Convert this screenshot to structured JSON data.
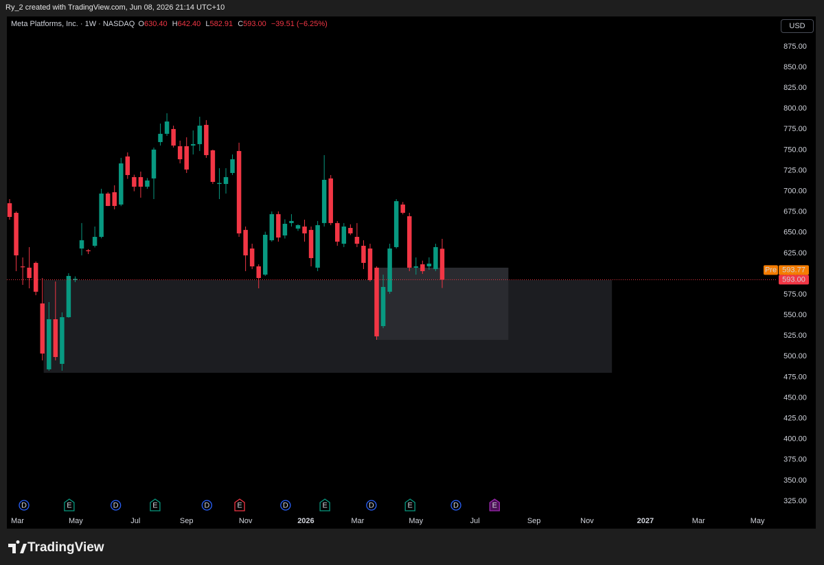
{
  "top_note": "Ry_2 created with TradingView.com, Jun 08, 2026 21:14 UTC+10",
  "header": {
    "symbol": "Meta Platforms, Inc. · 1W · NASDAQ",
    "ohlc": [
      {
        "label": "O",
        "value": "630.40"
      },
      {
        "label": "H",
        "value": "642.40"
      },
      {
        "label": "L",
        "value": "582.91"
      },
      {
        "label": "C",
        "value": "593.00"
      }
    ],
    "change": "−39.51 (−6.25%)"
  },
  "currency": "USD",
  "brand": "TradingView",
  "chart_data": {
    "type": "candlestick",
    "up_color": "#089981",
    "down_color": "#f23645",
    "open": [
      685.5,
      673.9,
      609,
      607.5,
      613.3,
      564.2,
      484.5,
      545.1,
      491.1,
      547.6,
      592.5,
      630.7,
      628.5,
      634,
      644.8,
      697.2,
      698.8,
      683.9,
      742.1,
      717.1,
      717.1,
      705.5,
      715.5,
      759.5,
      769.5,
      775.3,
      754.5,
      754.5,
      755.3,
      757,
      780.3,
      749.5,
      708.8,
      708.8,
      722.1,
      748.7,
      653.2,
      630.7,
      609.1,
      599.1,
      640.7,
      672.3,
      646.5,
      661.5,
      654.8,
      657.3,
      653.2,
      607.5,
      661.5,
      715.5,
      661.5,
      636.5,
      655.6,
      644.8,
      634,
      630.7,
      607.5,
      536.8,
      578.4,
      632.4,
      683.9,
      669.8,
      607.5,
      611.6,
      609.1,
      605.8,
      630.4
    ],
    "high": [
      690.5,
      675.6,
      619.9,
      632.4,
      615,
      595,
      565.9,
      590.8,
      553.4,
      600.8,
      597,
      661.5,
      630,
      657.3,
      703,
      699,
      707.2,
      740.4,
      747,
      720,
      723.8,
      716,
      752.9,
      781.9,
      794.4,
      779.4,
      761.2,
      765.3,
      773.6,
      790.2,
      786.1,
      750.4,
      727.9,
      727.9,
      744.5,
      758.7,
      657.3,
      636.5,
      611.6,
      651,
      675.6,
      675.6,
      666,
      672.3,
      660,
      665.6,
      657.3,
      664,
      743.7,
      719.6,
      664,
      661.5,
      660,
      661.5,
      640.7,
      636.5,
      609.1,
      599.1,
      636.5,
      690.5,
      687,
      673.9,
      619.9,
      616,
      620,
      636.5,
      642.4
    ],
    "low": [
      665.6,
      603.3,
      586.7,
      582.5,
      574.2,
      495.3,
      482.8,
      495.3,
      482.8,
      547,
      590,
      622.4,
      624,
      632,
      643,
      682,
      678.1,
      682,
      715,
      700,
      692.2,
      703,
      690.5,
      755.3,
      767,
      752.9,
      733.7,
      722.1,
      744.5,
      748.7,
      740.4,
      708.8,
      690.5,
      697.2,
      719.6,
      644.8,
      603.3,
      605.8,
      582.5,
      597.5,
      639,
      639,
      642.8,
      657.3,
      652,
      639,
      609.1,
      603.3,
      657.3,
      659,
      634,
      632.4,
      647,
      632.4,
      605.8,
      590.8,
      520.2,
      534.3,
      575.9,
      630.7,
      672,
      603.3,
      599.1,
      600,
      605,
      603.3,
      582.91
    ],
    "close": [
      668.9,
      622.4,
      608,
      595,
      578.4,
      503.6,
      545.1,
      499.4,
      547.6,
      597.5,
      594,
      640.7,
      627.4,
      644.8,
      697.2,
      682.2,
      682.2,
      733.7,
      719.6,
      705.5,
      705.5,
      713,
      750.4,
      769.5,
      784.4,
      755.3,
      738.7,
      726.3,
      757,
      779.4,
      743.7,
      711.3,
      710,
      717.1,
      738.7,
      649,
      622.4,
      609.1,
      595,
      647.3,
      672.3,
      644,
      660.6,
      664,
      659,
      649,
      619.1,
      659,
      713.8,
      661.5,
      639,
      657.3,
      649,
      636.5,
      613.3,
      592.5,
      524.4,
      584.2,
      630.7,
      688,
      673.9,
      607.5,
      609.1,
      603.3,
      612.4,
      632.4,
      593
    ],
    "ylim": [
      312.5,
      911.5
    ],
    "yticks": [
      {
        "value": 325,
        "label": "325.00"
      },
      {
        "value": 350,
        "label": "350.00"
      },
      {
        "value": 375,
        "label": "375.00"
      },
      {
        "value": 400,
        "label": "400.00"
      },
      {
        "value": 425,
        "label": "425.00"
      },
      {
        "value": 450,
        "label": "450.00"
      },
      {
        "value": 475,
        "label": "475.00"
      },
      {
        "value": 500,
        "label": "500.00"
      },
      {
        "value": 525,
        "label": "525.00"
      },
      {
        "value": 550,
        "label": "550.00"
      },
      {
        "value": 575,
        "label": "575.00"
      },
      {
        "value": 600,
        "label": "600.00"
      },
      {
        "value": 625,
        "label": "625.00"
      },
      {
        "value": 650,
        "label": "650.00"
      },
      {
        "value": 675,
        "label": "675.00"
      },
      {
        "value": 700,
        "label": "700.00"
      },
      {
        "value": 725,
        "label": "725.00"
      },
      {
        "value": 750,
        "label": "750.00"
      },
      {
        "value": 775,
        "label": "775.00"
      },
      {
        "value": 800,
        "label": "800.00"
      },
      {
        "value": 825,
        "label": "825.00"
      },
      {
        "value": 850,
        "label": "850.00"
      },
      {
        "value": 875,
        "label": "875.00"
      }
    ],
    "xlim": [
      -0.42,
      116.92
    ],
    "xticks": [
      {
        "value": 1.2,
        "label": "Mar"
      },
      {
        "value": 10.1,
        "label": "May"
      },
      {
        "value": 19.2,
        "label": "Jul"
      },
      {
        "value": 27,
        "label": "Sep"
      },
      {
        "value": 36,
        "label": "Nov"
      },
      {
        "value": 45.2,
        "label": "2026"
      },
      {
        "value": 53.1,
        "label": "Mar"
      },
      {
        "value": 62,
        "label": "May"
      },
      {
        "value": 71,
        "label": "Jul"
      },
      {
        "value": 80,
        "label": "Sep"
      },
      {
        "value": 88.1,
        "label": "Nov"
      },
      {
        "value": 97,
        "label": "2027"
      },
      {
        "value": 105.1,
        "label": "Mar"
      },
      {
        "value": 114.1,
        "label": "May"
      }
    ],
    "zones": [
      {
        "xlim": [
          5.2,
          91.9
        ],
        "ylim": [
          480.3,
          592.5
        ],
        "color": "#1c1d21"
      },
      {
        "xlim": [
          55.9,
          76.1
        ],
        "ylim": [
          520.2,
          607.5
        ],
        "color": "#2a2b30"
      }
    ],
    "last_price": {
      "value": 593,
      "label": "593.00",
      "color": "#f23645"
    },
    "premarket": {
      "tag": "Pre",
      "value": 593.77,
      "color": "#f57c00"
    },
    "events": [
      {
        "label": "D",
        "x": 2.2,
        "color": "#2962ff"
      },
      {
        "label": "E",
        "x": 9.1,
        "color": "#089981"
      },
      {
        "label": "D",
        "x": 16.2,
        "color": "#2962ff"
      },
      {
        "label": "E",
        "x": 22.2,
        "color": "#089981"
      },
      {
        "label": "D",
        "x": 30.1,
        "color": "#2962ff"
      },
      {
        "label": "E",
        "x": 35.1,
        "color": "#f23645"
      },
      {
        "label": "D",
        "x": 42.1,
        "color": "#2962ff"
      },
      {
        "label": "E",
        "x": 48.1,
        "color": "#089981"
      },
      {
        "label": "D",
        "x": 55.2,
        "color": "#2962ff"
      },
      {
        "label": "E",
        "x": 61.1,
        "color": "#089981"
      },
      {
        "label": "D",
        "x": 68.1,
        "color": "#2962ff"
      },
      {
        "label": "E",
        "x": 74,
        "color": "#9c27b0"
      }
    ]
  }
}
